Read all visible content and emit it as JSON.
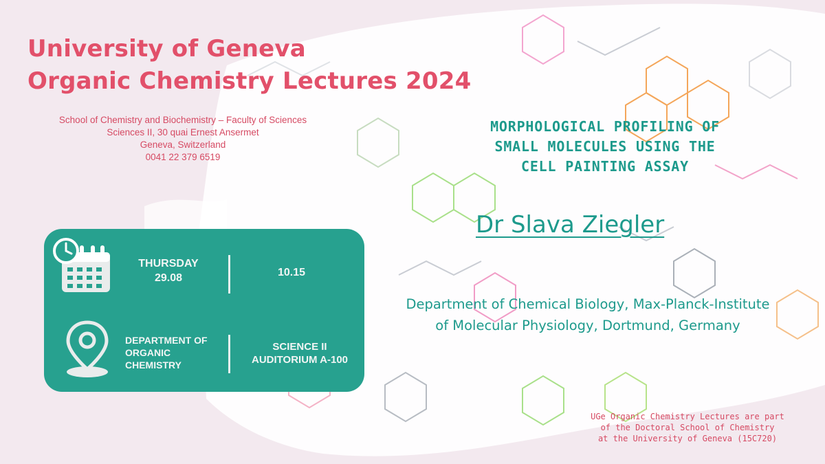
{
  "header": {
    "line1": "University of Geneva",
    "line2": "Organic Chemistry Lectures 2024"
  },
  "school": {
    "line1": "School of Chemistry and Biochemistry – Faculty of Sciences",
    "line2": "Sciences II, 30 quai Ernest Ansermet",
    "line3": "Geneva, Switzerland",
    "phone": "0041 22 379 6519"
  },
  "talk": {
    "title_line1": "MORPHOLOGICAL PROFILING OF",
    "title_line2": "SMALL MOLECULES USING THE",
    "title_line3": "CELL PAINTING ASSAY"
  },
  "speaker": {
    "name": "Dr Slava Ziegler",
    "affil_line1": "Department of Chemical Biology, Max-Planck-Institute",
    "affil_line2": "of Molecular Physiology, Dortmund, Germany"
  },
  "event": {
    "day": "THURSDAY",
    "date": "29.08",
    "time": "10.15",
    "dept_line1": "DEPARTMENT OF",
    "dept_line2": "ORGANIC",
    "dept_line3": "CHEMISTRY",
    "place_line1": "SCIENCE II",
    "place_line2": "AUDITORIUM A-100"
  },
  "footer": {
    "line1": "UGe Organic Chemistry Lectures are part",
    "line2": "of the Doctoral School of Chemistry",
    "line3": "at the University of Geneva (15C720)"
  },
  "colors": {
    "accent_pink": "#e2506a",
    "accent_teal": "#1d9a8c",
    "card_teal": "#27a18f",
    "background": "#f3e9ef"
  },
  "icons": [
    "calendar-clock-icon",
    "location-pin-icon"
  ]
}
